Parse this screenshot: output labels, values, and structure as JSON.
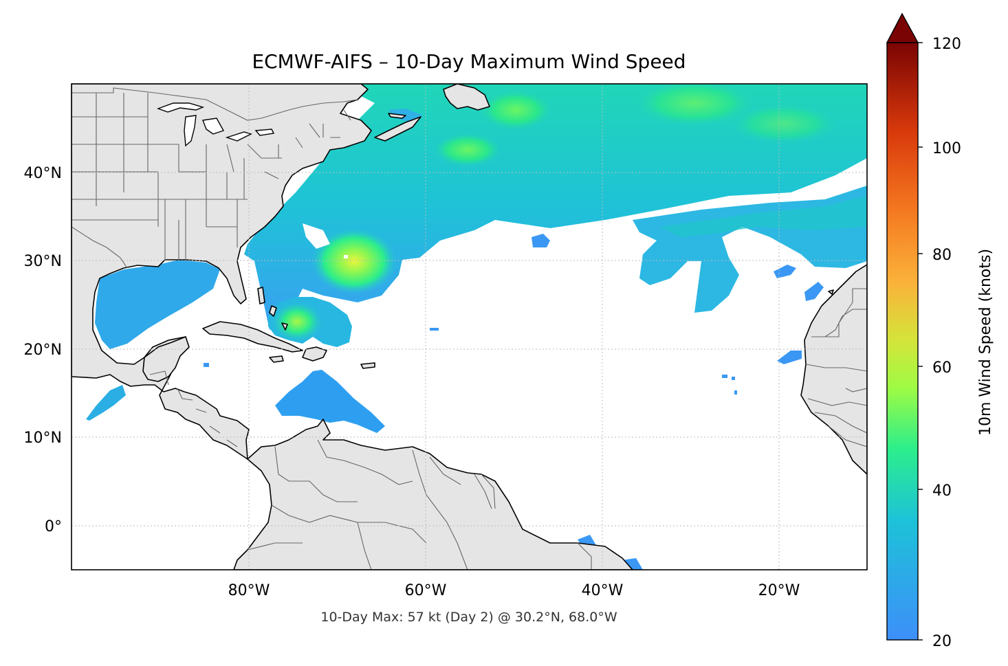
{
  "title": "ECMWF-AIFS – 10-Day Maximum Wind Speed",
  "annotation": "10-Day Max: 57 kt (Day 2) @ 30.2°N, 68.0°W",
  "map": {
    "lon_range": [
      -100,
      -10
    ],
    "lat_range": [
      -5,
      50
    ],
    "lon_ticks": [
      {
        "value": -80,
        "label": "80°W"
      },
      {
        "value": -60,
        "label": "60°W"
      },
      {
        "value": -40,
        "label": "40°W"
      },
      {
        "value": -20,
        "label": "20°W"
      }
    ],
    "lat_ticks": [
      {
        "value": 40,
        "label": "40°N"
      },
      {
        "value": 30,
        "label": "30°N"
      },
      {
        "value": 20,
        "label": "20°N"
      },
      {
        "value": 10,
        "label": "10°N"
      },
      {
        "value": 0,
        "label": "0°"
      }
    ],
    "land_color": "#e5e5e5",
    "coast_color": "#000000",
    "border_color": "#666666",
    "grid_color": "#bbbbbb",
    "max_point": {
      "lat": 30.2,
      "lon": -68.0,
      "value": 57
    }
  },
  "colorbar": {
    "label": "10m Wind Speed (knots)",
    "range": [
      20,
      120
    ],
    "extend": "max",
    "ticks": [
      {
        "value": 20,
        "label": "20"
      },
      {
        "value": 40,
        "label": "40"
      },
      {
        "value": 60,
        "label": "60"
      },
      {
        "value": 80,
        "label": "80"
      },
      {
        "value": 100,
        "label": "100"
      },
      {
        "value": 120,
        "label": "120"
      }
    ],
    "colors": [
      "#3d8ff9",
      "#23b9e4",
      "#19d2be",
      "#2cee8b",
      "#74fb5c",
      "#b1f43a",
      "#e0d73a",
      "#fbb13a",
      "#f77a20",
      "#e04a10",
      "#b62008",
      "#7a0403"
    ]
  }
}
